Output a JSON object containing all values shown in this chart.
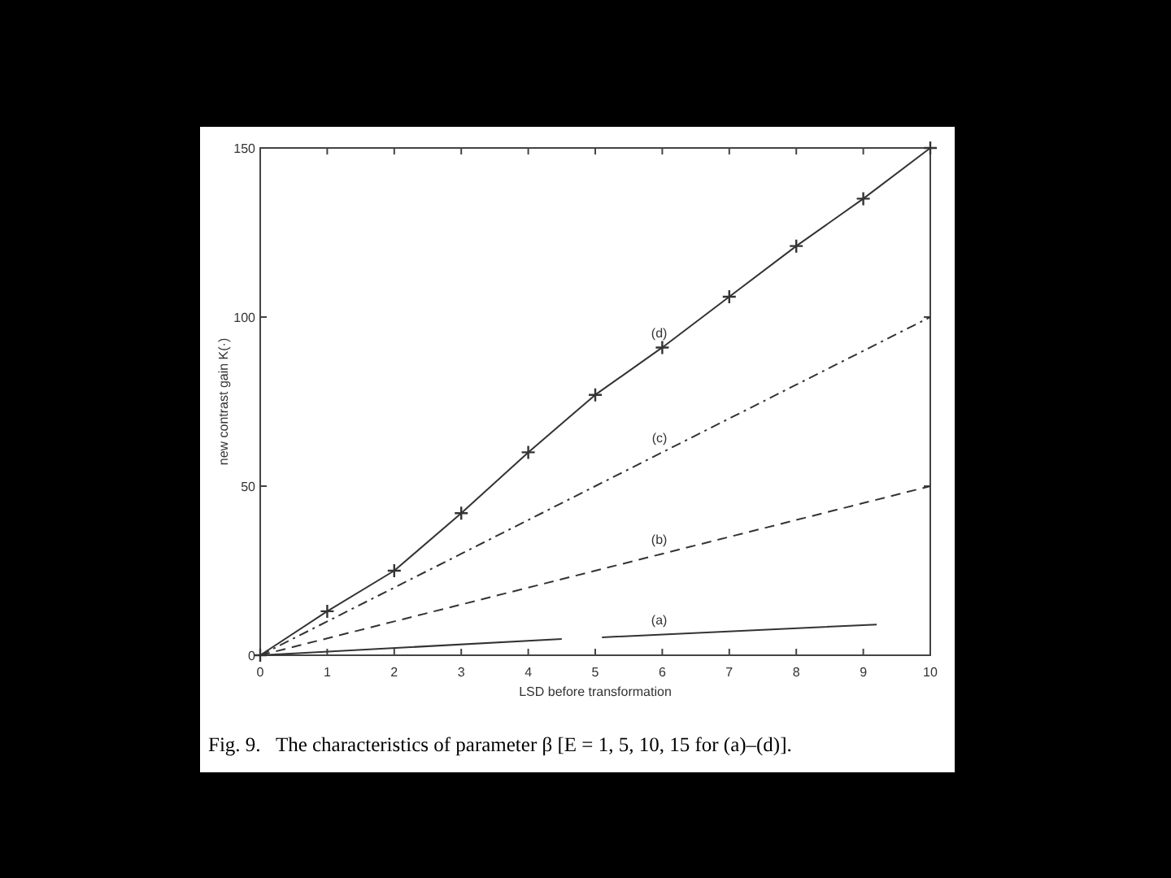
{
  "chart_data": {
    "type": "line",
    "xlabel": "LSD before transformation",
    "ylabel": "new contrast gain K(·)",
    "xlim": [
      0,
      10
    ],
    "ylim": [
      0,
      150
    ],
    "xticks": [
      0,
      1,
      2,
      3,
      4,
      5,
      6,
      7,
      8,
      9,
      10
    ],
    "yticks": [
      0,
      50,
      100,
      150
    ],
    "grid": false,
    "series": [
      {
        "name": "(a)",
        "color": "#333333",
        "line_style": "solid",
        "marker": "none",
        "x": [
          0,
          4.5,
          4.8,
          5.1,
          9.2
        ],
        "values": [
          0,
          4.8,
          null,
          5.3,
          9.1
        ]
      },
      {
        "name": "(b)",
        "color": "#333333",
        "line_style": "dashed",
        "marker": "none",
        "x": [
          0,
          1,
          2,
          3,
          4,
          5,
          6,
          7,
          8,
          9,
          10
        ],
        "values": [
          0,
          5,
          10,
          15,
          20,
          25,
          30,
          35,
          40,
          45,
          50
        ]
      },
      {
        "name": "(c)",
        "color": "#333333",
        "line_style": "dashdot",
        "marker": "none",
        "x": [
          0,
          1,
          2,
          3,
          4,
          5,
          6,
          7,
          8,
          9,
          10
        ],
        "values": [
          0,
          10,
          20,
          30,
          40,
          50,
          60,
          70,
          80,
          90,
          100
        ]
      },
      {
        "name": "(d)",
        "color": "#333333",
        "line_style": "solid",
        "marker": "cross",
        "x": [
          0,
          1,
          2,
          3,
          4,
          5,
          6,
          7,
          8,
          9,
          10
        ],
        "values": [
          0,
          13,
          25,
          42,
          60,
          77,
          91,
          106,
          121,
          135,
          150
        ]
      }
    ],
    "annotations": [
      "Fig. 9.   The characteristics of parameter β [E = 1, 5, 10, 15 for (a)–(d)]."
    ]
  }
}
